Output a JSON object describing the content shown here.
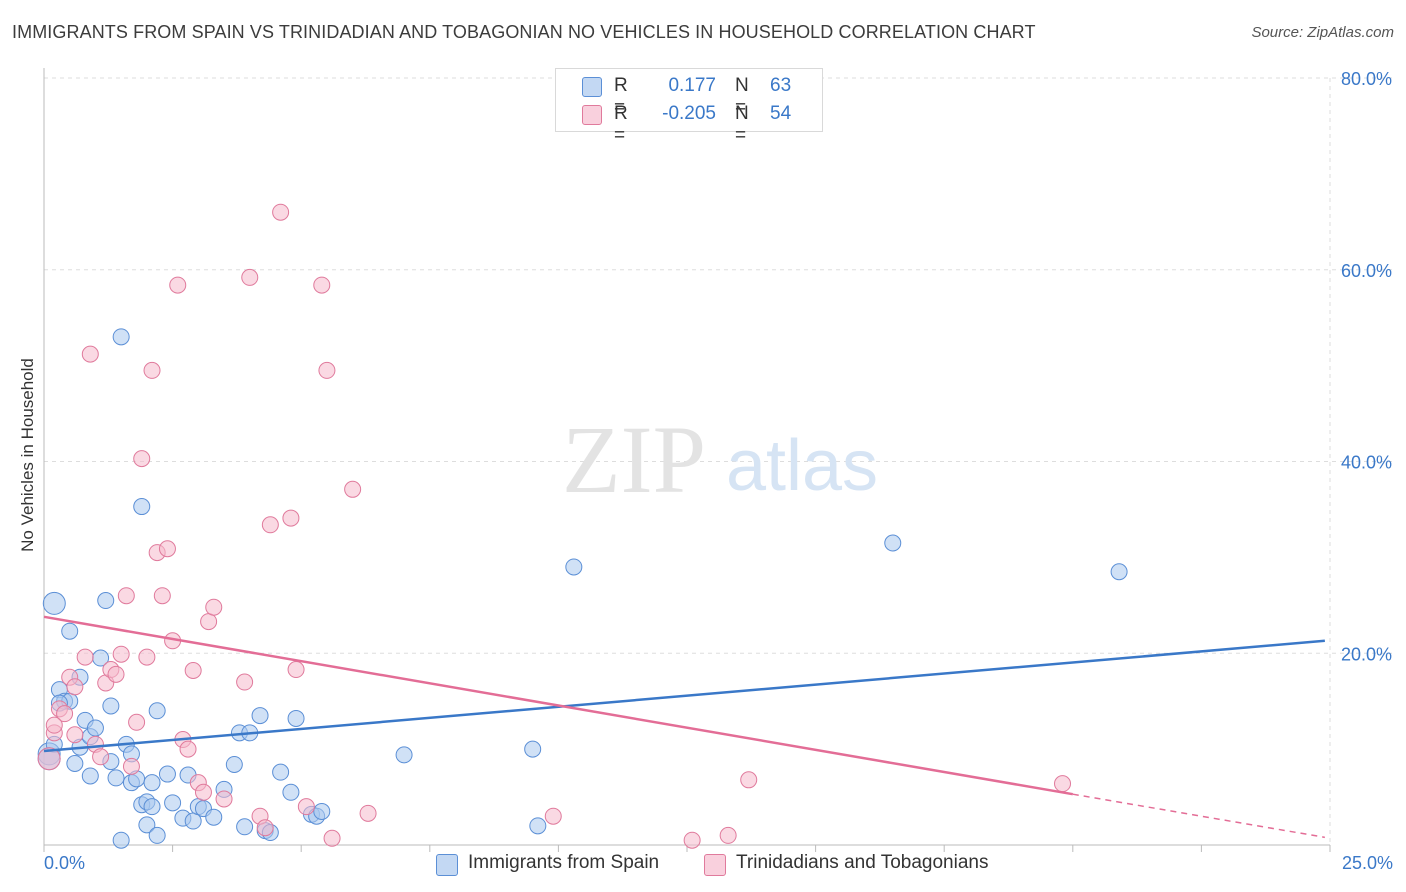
{
  "header": {
    "title": "IMMIGRANTS FROM SPAIN VS TRINIDADIAN AND TOBAGONIAN NO VEHICLES IN HOUSEHOLD CORRELATION CHART",
    "source": "Source: ZipAtlas.com"
  },
  "watermark": {
    "zip": "ZIP",
    "atlas": "atlas"
  },
  "legend": {
    "blue": {
      "r_label": "R =",
      "r_value": "0.177",
      "n_label": "N =",
      "n_value": "63"
    },
    "pink": {
      "r_label": "R =",
      "r_value": "-0.205",
      "n_label": "N =",
      "n_value": "54"
    }
  },
  "colors": {
    "blue_fill": "#a9c8ef",
    "blue_stroke": "#5b8fd6",
    "blue_line": "#3a78c8",
    "pink_fill": "#f5b9cc",
    "pink_stroke": "#e07a9c",
    "pink_line": "#e36d96",
    "tick_label": "#3a78c8",
    "grid": "#dddddd"
  },
  "chart_data": {
    "type": "scatter",
    "title": "IMMIGRANTS FROM SPAIN VS TRINIDADIAN AND TOBAGONIAN NO VEHICLES IN HOUSEHOLD CORRELATION CHART",
    "xlabel": "",
    "ylabel": "No Vehicles in Household",
    "xlim": [
      0,
      25
    ],
    "ylim": [
      0,
      80
    ],
    "x_tick_labels": [
      "0.0%",
      "25.0%"
    ],
    "y_ticks": [
      20,
      40,
      60,
      80
    ],
    "y_tick_labels": [
      "20.0%",
      "40.0%",
      "60.0%",
      "80.0%"
    ],
    "grid": true,
    "legend_position": "top-center",
    "series": [
      {
        "name": "Immigrants from Spain",
        "color": "#a9c8ef",
        "trend": {
          "x": [
            0,
            24.9
          ],
          "y": [
            9.8,
            21.3
          ]
        },
        "points": [
          [
            0.1,
            9.5
          ],
          [
            0.2,
            10.5
          ],
          [
            0.2,
            25.2
          ],
          [
            0.3,
            16.2
          ],
          [
            0.4,
            15.0
          ],
          [
            0.5,
            22.3
          ],
          [
            0.5,
            15.0
          ],
          [
            0.6,
            8.5
          ],
          [
            0.7,
            17.5
          ],
          [
            0.7,
            10.2
          ],
          [
            0.8,
            13.0
          ],
          [
            0.9,
            7.2
          ],
          [
            0.9,
            11.3
          ],
          [
            1.0,
            12.2
          ],
          [
            1.1,
            19.5
          ],
          [
            1.2,
            25.5
          ],
          [
            1.3,
            14.5
          ],
          [
            1.3,
            8.7
          ],
          [
            1.4,
            7.0
          ],
          [
            1.5,
            0.5
          ],
          [
            1.5,
            53.0
          ],
          [
            1.6,
            10.5
          ],
          [
            1.7,
            9.5
          ],
          [
            1.7,
            6.5
          ],
          [
            1.8,
            6.9
          ],
          [
            1.9,
            4.2
          ],
          [
            1.9,
            35.3
          ],
          [
            2.0,
            2.1
          ],
          [
            2.0,
            4.5
          ],
          [
            2.1,
            6.5
          ],
          [
            2.1,
            4.0
          ],
          [
            2.2,
            1.0
          ],
          [
            2.2,
            14.0
          ],
          [
            2.4,
            7.4
          ],
          [
            2.5,
            4.4
          ],
          [
            2.7,
            2.8
          ],
          [
            2.8,
            7.3
          ],
          [
            2.9,
            2.5
          ],
          [
            3.0,
            4.0
          ],
          [
            3.1,
            3.8
          ],
          [
            3.3,
            2.9
          ],
          [
            3.5,
            5.8
          ],
          [
            3.7,
            8.4
          ],
          [
            3.8,
            11.7
          ],
          [
            4.0,
            11.7
          ],
          [
            4.2,
            13.5
          ],
          [
            4.3,
            1.5
          ],
          [
            4.4,
            1.3
          ],
          [
            4.6,
            7.6
          ],
          [
            4.8,
            5.5
          ],
          [
            4.9,
            13.2
          ],
          [
            5.2,
            3.2
          ],
          [
            5.3,
            3.0
          ],
          [
            5.4,
            3.5
          ],
          [
            7.0,
            9.4
          ],
          [
            9.5,
            10.0
          ],
          [
            9.6,
            2.0
          ],
          [
            10.3,
            29.0
          ],
          [
            16.5,
            31.5
          ],
          [
            20.9,
            28.5
          ],
          [
            0.1,
            9.0
          ],
          [
            0.3,
            14.8
          ],
          [
            3.9,
            1.9
          ]
        ]
      },
      {
        "name": "Trinidadians and Tobagonians",
        "color": "#f5b9cc",
        "trend": {
          "x": [
            0,
            20.0
          ],
          "y": [
            23.8,
            5.3
          ]
        },
        "trend_extension": {
          "x": [
            20.0,
            24.9
          ],
          "y": [
            5.3,
            0.8
          ]
        },
        "points": [
          [
            0.1,
            9.0
          ],
          [
            0.2,
            11.7
          ],
          [
            0.3,
            14.2
          ],
          [
            0.4,
            13.7
          ],
          [
            0.5,
            17.5
          ],
          [
            0.6,
            16.5
          ],
          [
            0.6,
            11.5
          ],
          [
            0.8,
            19.6
          ],
          [
            0.9,
            51.2
          ],
          [
            1.0,
            10.5
          ],
          [
            1.1,
            9.2
          ],
          [
            1.2,
            16.9
          ],
          [
            1.3,
            18.3
          ],
          [
            1.4,
            17.8
          ],
          [
            1.5,
            19.9
          ],
          [
            1.6,
            26.0
          ],
          [
            1.7,
            8.2
          ],
          [
            1.8,
            12.8
          ],
          [
            1.9,
            40.3
          ],
          [
            2.0,
            19.6
          ],
          [
            2.1,
            49.5
          ],
          [
            2.2,
            30.5
          ],
          [
            2.3,
            26.0
          ],
          [
            2.4,
            30.9
          ],
          [
            2.5,
            21.3
          ],
          [
            2.6,
            58.4
          ],
          [
            2.7,
            11.0
          ],
          [
            2.8,
            10.0
          ],
          [
            2.9,
            18.2
          ],
          [
            3.0,
            6.5
          ],
          [
            3.1,
            5.5
          ],
          [
            3.2,
            23.3
          ],
          [
            3.3,
            24.8
          ],
          [
            3.5,
            4.8
          ],
          [
            3.9,
            17.0
          ],
          [
            4.0,
            59.2
          ],
          [
            4.2,
            3.0
          ],
          [
            4.3,
            1.8
          ],
          [
            4.4,
            33.4
          ],
          [
            4.6,
            66.0
          ],
          [
            4.8,
            34.1
          ],
          [
            4.9,
            18.3
          ],
          [
            5.1,
            4.0
          ],
          [
            5.4,
            58.4
          ],
          [
            5.5,
            49.5
          ],
          [
            5.6,
            0.7
          ],
          [
            6.0,
            37.1
          ],
          [
            6.3,
            3.3
          ],
          [
            9.9,
            3.0
          ],
          [
            12.6,
            0.5
          ],
          [
            13.3,
            1.0
          ],
          [
            13.7,
            6.8
          ],
          [
            19.8,
            6.4
          ],
          [
            0.2,
            12.5
          ]
        ]
      }
    ]
  },
  "bottom_legend": {
    "blue_label": "Immigrants from Spain",
    "pink_label": "Trinidadians and Tobagonians"
  }
}
